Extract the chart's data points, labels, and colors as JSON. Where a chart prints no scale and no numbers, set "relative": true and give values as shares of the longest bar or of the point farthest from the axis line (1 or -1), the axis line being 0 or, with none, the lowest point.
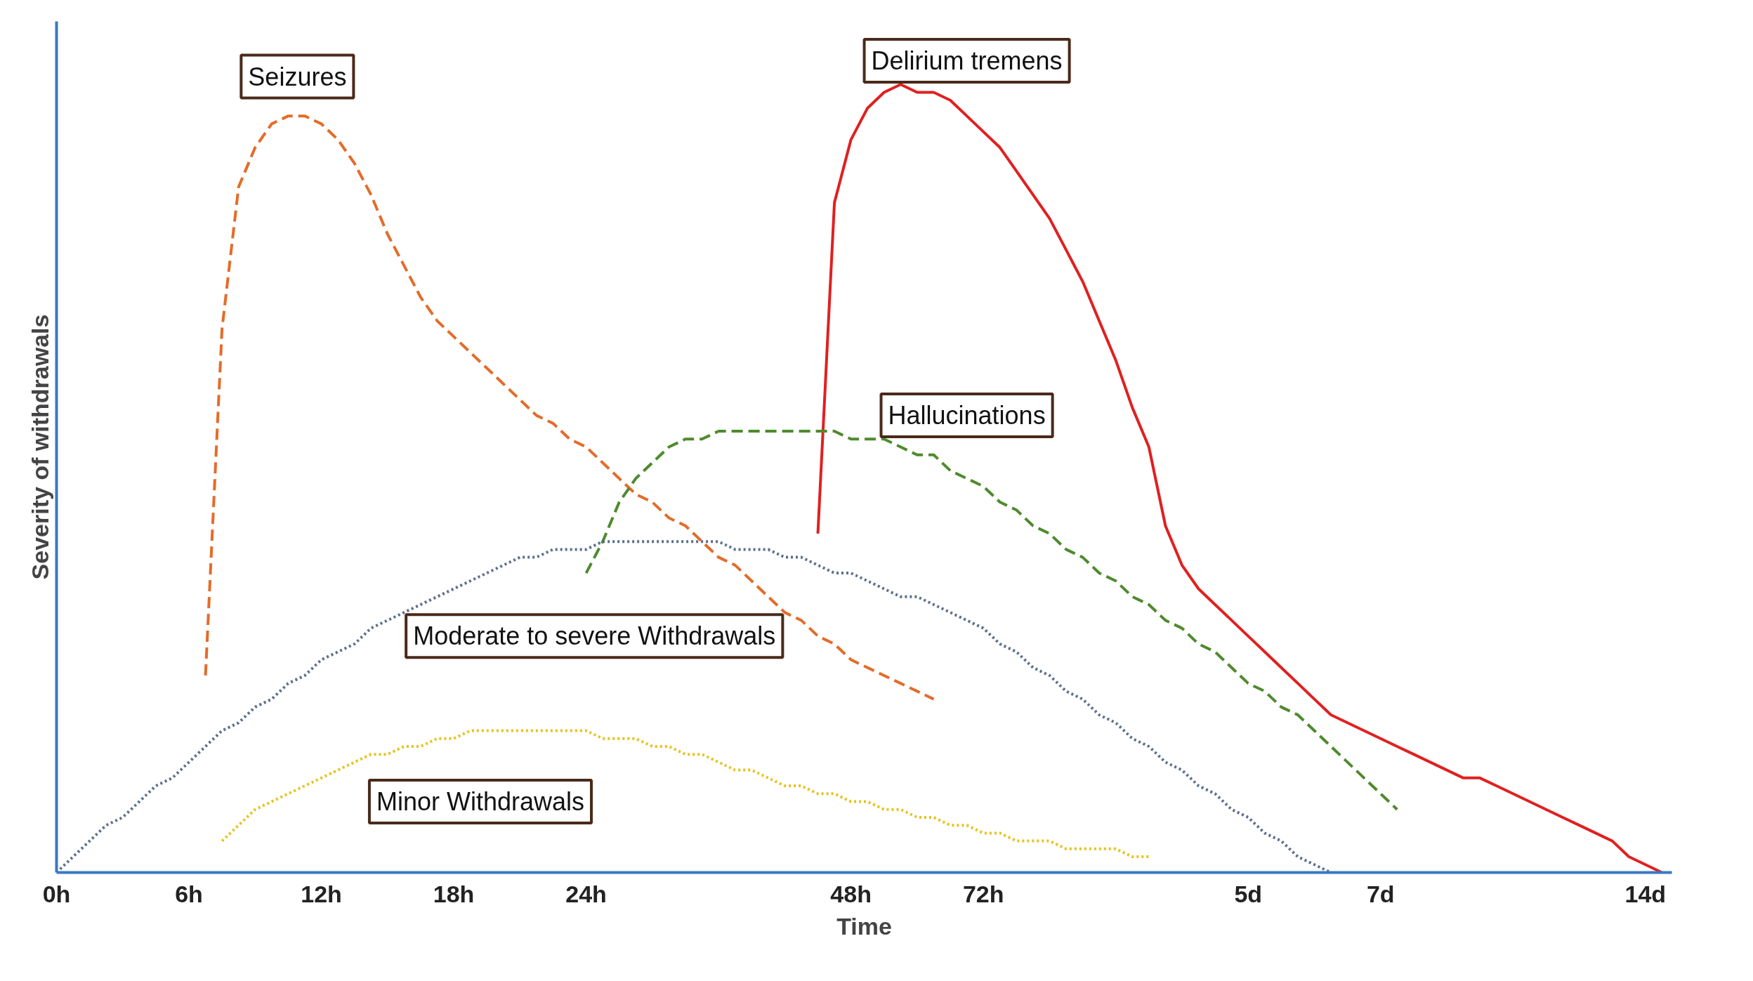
{
  "chart_data": {
    "type": "line",
    "relative": true,
    "xlabel": "Time",
    "ylabel": "Severity of withdrawals",
    "grid": false,
    "categories": [
      "0h",
      null,
      null,
      null,
      null,
      null,
      null,
      null,
      "6h",
      null,
      null,
      null,
      null,
      null,
      null,
      null,
      "12h",
      null,
      null,
      null,
      null,
      null,
      null,
      null,
      "18h",
      null,
      null,
      null,
      null,
      null,
      null,
      null,
      "24h",
      null,
      null,
      null,
      null,
      null,
      null,
      null,
      null,
      null,
      null,
      null,
      null,
      null,
      null,
      null,
      "48h",
      null,
      null,
      null,
      null,
      null,
      null,
      null,
      "72h",
      null,
      null,
      null,
      null,
      null,
      null,
      null,
      null,
      null,
      null,
      null,
      null,
      null,
      null,
      null,
      "5d",
      null,
      null,
      null,
      null,
      null,
      null,
      null,
      "7d",
      null,
      null,
      null,
      null,
      null,
      null,
      null,
      null,
      null,
      null,
      null,
      null,
      null,
      null,
      null,
      "14d",
      null
    ],
    "series": [
      {
        "color": "#e36c2a",
        "line_style": "dashed",
        "values": [
          null,
          null,
          null,
          null,
          null,
          null,
          null,
          null,
          null,
          0.25,
          0.69,
          0.87,
          0.92,
          0.95,
          0.96,
          0.96,
          0.95,
          0.93,
          0.9,
          0.86,
          0.81,
          0.77,
          0.73,
          0.7,
          0.68,
          0.66,
          0.64,
          0.62,
          0.6,
          0.58,
          0.57,
          0.55,
          0.54,
          0.52,
          0.5,
          0.48,
          0.47,
          0.45,
          0.44,
          0.42,
          0.4,
          0.39,
          0.37,
          0.35,
          0.33,
          0.32,
          0.3,
          0.29,
          0.27,
          0.26,
          0.25,
          0.24,
          0.23,
          0.22,
          null,
          null,
          null,
          null,
          null,
          null,
          null,
          null,
          null,
          null,
          null,
          null,
          null,
          null,
          null,
          null,
          null,
          null,
          null,
          null,
          null,
          null,
          null,
          null,
          null,
          null,
          null,
          null,
          null,
          null,
          null,
          null,
          null,
          null,
          null,
          null,
          null,
          null,
          null,
          null,
          null,
          null,
          null,
          null
        ]
      },
      {
        "color": "#e02020",
        "line_style": "solid",
        "values": [
          null,
          null,
          null,
          null,
          null,
          null,
          null,
          null,
          null,
          null,
          null,
          null,
          null,
          null,
          null,
          null,
          null,
          null,
          null,
          null,
          null,
          null,
          null,
          null,
          null,
          null,
          null,
          null,
          null,
          null,
          null,
          null,
          null,
          null,
          null,
          null,
          null,
          null,
          null,
          null,
          null,
          null,
          null,
          null,
          null,
          null,
          0.43,
          0.85,
          0.93,
          0.97,
          0.99,
          1,
          0.99,
          0.99,
          0.98,
          0.96,
          0.94,
          0.92,
          0.89,
          0.86,
          0.83,
          0.79,
          0.75,
          0.7,
          0.65,
          0.59,
          0.54,
          0.44,
          0.39,
          0.36,
          0.34,
          0.32,
          0.3,
          0.28,
          0.26,
          0.24,
          0.22,
          0.2,
          0.19,
          0.18,
          0.17,
          0.16,
          0.15,
          0.14,
          0.13,
          0.12,
          0.12,
          0.11,
          0.1,
          0.09,
          0.08,
          0.07,
          0.06,
          0.05,
          0.04,
          0.02,
          0.01,
          0
        ]
      },
      {
        "color": "#4f8a2e",
        "line_style": "dashed",
        "values": [
          null,
          null,
          null,
          null,
          null,
          null,
          null,
          null,
          null,
          null,
          null,
          null,
          null,
          null,
          null,
          null,
          null,
          null,
          null,
          null,
          null,
          null,
          null,
          null,
          null,
          null,
          null,
          null,
          null,
          null,
          null,
          null,
          0.38,
          0.42,
          0.47,
          0.5,
          0.52,
          0.54,
          0.55,
          0.55,
          0.56,
          0.56,
          0.56,
          0.56,
          0.56,
          0.56,
          0.56,
          0.56,
          0.55,
          0.55,
          0.55,
          0.54,
          0.53,
          0.53,
          0.51,
          0.5,
          0.49,
          0.47,
          0.46,
          0.44,
          0.43,
          0.41,
          0.4,
          0.38,
          0.37,
          0.35,
          0.34,
          0.32,
          0.31,
          0.29,
          0.28,
          0.26,
          0.24,
          0.23,
          0.21,
          0.2,
          0.18,
          0.16,
          0.14,
          0.12,
          0.1,
          0.08,
          null,
          null,
          null,
          null,
          null,
          null,
          null,
          null,
          null,
          null,
          null,
          null,
          null,
          null,
          null,
          null
        ]
      },
      {
        "color": "#5a6e8c",
        "line_style": "dotted",
        "values": [
          0,
          0.02,
          0.04,
          0.06,
          0.07,
          0.09,
          0.11,
          0.12,
          0.14,
          0.16,
          0.18,
          0.19,
          0.21,
          0.22,
          0.24,
          0.25,
          0.27,
          0.28,
          0.29,
          0.31,
          0.32,
          0.33,
          0.34,
          0.35,
          0.36,
          0.37,
          0.38,
          0.39,
          0.4,
          0.4,
          0.41,
          0.41,
          0.41,
          0.42,
          0.42,
          0.42,
          0.42,
          0.42,
          0.42,
          0.42,
          0.42,
          0.41,
          0.41,
          0.41,
          0.4,
          0.4,
          0.39,
          0.38,
          0.38,
          0.37,
          0.36,
          0.35,
          0.35,
          0.34,
          0.33,
          0.32,
          0.31,
          0.29,
          0.28,
          0.26,
          0.25,
          0.23,
          0.22,
          0.2,
          0.19,
          0.17,
          0.16,
          0.14,
          0.13,
          0.11,
          0.1,
          0.08,
          0.07,
          0.05,
          0.04,
          0.02,
          0.01,
          0,
          null,
          null,
          null,
          null,
          null,
          null,
          null,
          null,
          null,
          null,
          null,
          null,
          null,
          null,
          null,
          null,
          null,
          null,
          null,
          null
        ]
      },
      {
        "color": "#e8c21a",
        "line_style": "dotted",
        "values": [
          null,
          null,
          null,
          null,
          null,
          null,
          null,
          null,
          null,
          null,
          0.04,
          0.06,
          0.08,
          0.09,
          0.1,
          0.11,
          0.12,
          0.13,
          0.14,
          0.15,
          0.15,
          0.16,
          0.16,
          0.17,
          0.17,
          0.18,
          0.18,
          0.18,
          0.18,
          0.18,
          0.18,
          0.18,
          0.18,
          0.17,
          0.17,
          0.17,
          0.16,
          0.16,
          0.15,
          0.15,
          0.14,
          0.13,
          0.13,
          0.12,
          0.11,
          0.11,
          0.1,
          0.1,
          0.09,
          0.09,
          0.08,
          0.08,
          0.07,
          0.07,
          0.06,
          0.06,
          0.05,
          0.05,
          0.04,
          0.04,
          0.04,
          0.03,
          0.03,
          0.03,
          0.03,
          0.02,
          0.02,
          null,
          null,
          null,
          null,
          null,
          null,
          null,
          null,
          null,
          null,
          null,
          null,
          null,
          null,
          null,
          null,
          null,
          null,
          null,
          null,
          null,
          null,
          null,
          null,
          null,
          null,
          null,
          null,
          null,
          null,
          null
        ]
      }
    ],
    "annotations": [
      "Seizures",
      "Delirium tremens",
      "Hallucinations",
      "Moderate to severe Withdrawals",
      "Minor Withdrawals"
    ]
  }
}
